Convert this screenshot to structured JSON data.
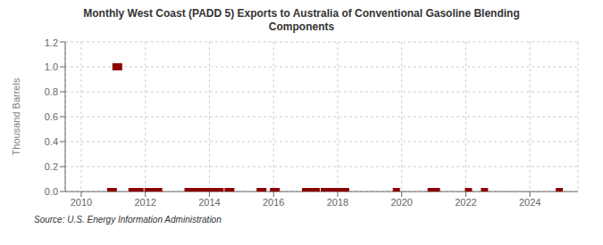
{
  "chart_data": {
    "type": "scatter",
    "title": "Monthly West Coast (PADD 5) Exports to Australia of Conventional Gasoline Blending\nComponents",
    "y_label": "Thousand Barrels",
    "annotations": [
      "Source: U.S. Energy Information Administration"
    ],
    "x": [
      2010.917,
      2011.0,
      2011.083,
      2011.167,
      2011.583,
      2011.667,
      2011.75,
      2011.833,
      2012.083,
      2012.167,
      2012.25,
      2012.333,
      2012.417,
      2013.333,
      2013.417,
      2013.5,
      2013.583,
      2013.667,
      2013.75,
      2013.833,
      2014.0,
      2014.083,
      2014.167,
      2014.25,
      2014.333,
      2014.583,
      2014.667,
      2015.583,
      2015.667,
      2016.0,
      2016.083,
      2017.0,
      2017.083,
      2017.167,
      2017.25,
      2017.333,
      2017.583,
      2017.667,
      2017.75,
      2017.833,
      2017.917,
      2018.083,
      2018.25,
      2019.833,
      2020.917,
      2021.0,
      2021.083,
      2022.083,
      2022.583,
      2024.917
    ],
    "values": [
      0.0,
      0.0,
      1.0,
      1.0,
      0.0,
      0.0,
      0.0,
      0.0,
      0.0,
      0.0,
      0.0,
      0.0,
      0.0,
      0.0,
      0.0,
      0.0,
      0.0,
      0.0,
      0.0,
      0.0,
      0.0,
      0.0,
      0.0,
      0.0,
      0.0,
      0.0,
      0.0,
      0.0,
      0.0,
      0.0,
      0.0,
      0.0,
      0.0,
      0.0,
      0.0,
      0.0,
      0.0,
      0.0,
      0.0,
      0.0,
      0.0,
      0.0,
      0.0,
      0.0,
      0.0,
      0.0,
      0.0,
      0.0,
      0.0,
      0.0
    ],
    "color": "#8b0000",
    "marker": "square",
    "xlim": [
      2009.5,
      2025.5
    ],
    "ylim": [
      0.0,
      1.2
    ],
    "xticks": [
      2010,
      2012,
      2014,
      2016,
      2018,
      2020,
      2022,
      2024
    ],
    "yticks": [
      {
        "value": 0.0,
        "label": "0.0"
      },
      0.2,
      0.4,
      0.6,
      0.8,
      {
        "value": 1.0,
        "label": "1.0"
      },
      1.2
    ],
    "grid": true
  }
}
